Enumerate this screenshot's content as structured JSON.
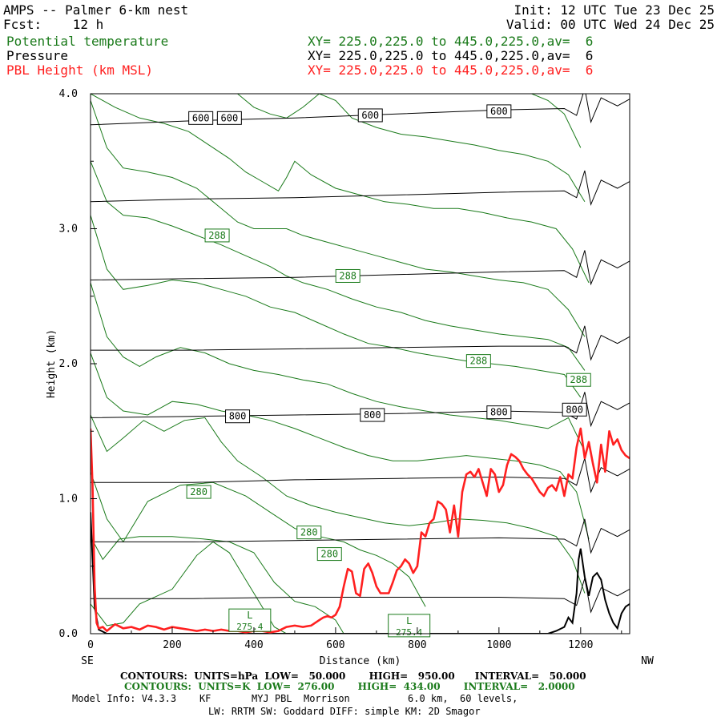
{
  "header": {
    "title": "AMPS -- Palmer 6-km nest",
    "fcst": "Fcst:    12 h",
    "init": "Init: 12 UTC Tue 23 Dec 25",
    "valid": "Valid: 00 UTC Wed 24 Dec 25",
    "fields": [
      {
        "name": "Potential temperature",
        "xy": "XY= 225.0,225.0 to 445.0,225.0,av=  6",
        "color": "#1a7a1a"
      },
      {
        "name": "Pressure",
        "xy": "XY= 225.0,225.0 to 445.0,225.0,av=  6",
        "color": "#000000"
      },
      {
        "name": "PBL Height (km MSL)",
        "xy": "XY= 225.0,225.0 to 445.0,225.0,av=  6",
        "color": "#ff2020"
      }
    ]
  },
  "footer": {
    "contours_p": "CONTOURS:  UNITS=hPa  LOW=   50.000       HIGH=   950.00      INTERVAL=   50.000",
    "contours_t": "CONTOURS:  UNITS=K  LOW=  276.00       HIGH=  434.00       INTERVAL=   2.0000",
    "model_info": "Model Info: V4.3.3    KF       MYJ PBL  Morrison          6.0 km,  60 levels,",
    "model_info2": "LW: RRTM SW: Goddard DIFF: simple KM: 2D Smagor"
  },
  "chart_data": {
    "type": "line",
    "xlabel": "Distance (km)",
    "ylabel": "Height (km)",
    "xlim": [
      0,
      1320
    ],
    "ylim": [
      0,
      4.0
    ],
    "x_ticks": [
      0,
      200,
      400,
      600,
      800,
      1000,
      1200
    ],
    "y_ticks": [
      "0.0",
      "1.0",
      "2.0",
      "3.0",
      "4.0"
    ],
    "x_end_labels": {
      "left": "SE",
      "right": "NW"
    },
    "colors": {
      "theta": "#1a7a1a",
      "pressure": "#000000",
      "pbl": "#ff2020"
    },
    "pbl_height": {
      "name": "PBL Height (km MSL)",
      "x": [
        0,
        5,
        10,
        15,
        20,
        30,
        40,
        60,
        80,
        100,
        120,
        140,
        160,
        180,
        200,
        220,
        240,
        260,
        280,
        300,
        320,
        340,
        360,
        380,
        400,
        420,
        440,
        460,
        480,
        500,
        520,
        540,
        560,
        570,
        580,
        590,
        600,
        610,
        620,
        630,
        640,
        650,
        660,
        670,
        680,
        690,
        700,
        710,
        720,
        730,
        740,
        750,
        760,
        770,
        780,
        790,
        800,
        810,
        820,
        830,
        840,
        850,
        860,
        870,
        880,
        890,
        900,
        910,
        920,
        930,
        940,
        950,
        960,
        970,
        980,
        990,
        1000,
        1010,
        1020,
        1030,
        1040,
        1050,
        1060,
        1070,
        1080,
        1090,
        1100,
        1110,
        1120,
        1130,
        1140,
        1150,
        1160,
        1170,
        1180,
        1190,
        1200,
        1210,
        1220,
        1230,
        1240,
        1250,
        1260,
        1270,
        1280,
        1290,
        1300,
        1310,
        1320
      ],
      "y": [
        1.52,
        1.1,
        0.35,
        0.08,
        0.04,
        0.05,
        0.02,
        0.07,
        0.04,
        0.05,
        0.03,
        0.06,
        0.05,
        0.03,
        0.05,
        0.04,
        0.03,
        0.02,
        0.03,
        0.02,
        0.03,
        0.02,
        0.02,
        0.01,
        0.02,
        0.02,
        0.01,
        0.02,
        0.05,
        0.06,
        0.05,
        0.06,
        0.1,
        0.12,
        0.13,
        0.12,
        0.14,
        0.2,
        0.35,
        0.48,
        0.46,
        0.3,
        0.28,
        0.48,
        0.52,
        0.45,
        0.35,
        0.3,
        0.3,
        0.3,
        0.38,
        0.47,
        0.5,
        0.55,
        0.52,
        0.45,
        0.5,
        0.75,
        0.72,
        0.82,
        0.85,
        0.98,
        0.96,
        0.92,
        0.75,
        0.95,
        0.72,
        1.05,
        1.18,
        1.2,
        1.16,
        1.22,
        1.12,
        1.02,
        1.22,
        1.18,
        1.05,
        1.1,
        1.25,
        1.33,
        1.31,
        1.28,
        1.22,
        1.18,
        1.15,
        1.1,
        1.05,
        1.02,
        1.08,
        1.1,
        1.06,
        1.16,
        1.02,
        1.18,
        1.15,
        1.38,
        1.52,
        1.3,
        1.42,
        1.26,
        1.12,
        1.4,
        1.2,
        1.5,
        1.4,
        1.44,
        1.36,
        1.32,
        1.3
      ]
    },
    "pressure_contours": {
      "units": "hPa",
      "low": 50,
      "high": 950,
      "interval": 50,
      "labeled_levels": [
        "600",
        "800"
      ],
      "levels": [
        {
          "level": 950,
          "y": [
            0.26,
            0.26,
            0.27,
            0.27,
            0.27,
            0.26
          ]
        },
        {
          "level": 900,
          "y": [
            0.68,
            0.68,
            0.69,
            0.7,
            0.71,
            0.7
          ]
        },
        {
          "level": 850,
          "y": [
            1.12,
            1.12,
            1.14,
            1.15,
            1.16,
            1.15
          ]
        },
        {
          "level": 800,
          "y": [
            1.6,
            1.61,
            1.62,
            1.63,
            1.65,
            1.64
          ]
        },
        {
          "level": 750,
          "y": [
            2.1,
            2.1,
            2.11,
            2.12,
            2.13,
            2.13
          ]
        },
        {
          "level": 700,
          "y": [
            2.62,
            2.63,
            2.64,
            2.66,
            2.68,
            2.69
          ]
        },
        {
          "level": 650,
          "y": [
            3.2,
            3.22,
            3.23,
            3.25,
            3.27,
            3.28
          ]
        },
        {
          "level": 600,
          "y": [
            3.77,
            3.8,
            3.82,
            3.85,
            3.88,
            3.89
          ]
        }
      ],
      "x": [
        0,
        250,
        500,
        750,
        1000,
        1160
      ]
    },
    "theta_contours": {
      "units": "K",
      "low": 276,
      "high": 434,
      "interval": 2,
      "labeled_levels": [
        "280",
        "288"
      ],
      "lines": [
        {
          "x": [
            0,
            40,
            80,
            120,
            200,
            260,
            300,
            340,
            380,
            420,
            450,
            480
          ],
          "y": [
            0.22,
            0.06,
            0.08,
            0.22,
            0.33,
            0.58,
            0.68,
            0.6,
            0.4,
            0.2,
            0.05,
            0.0
          ]
        },
        {
          "x": [
            0,
            30,
            70,
            120,
            200,
            280,
            340,
            400,
            450,
            500,
            550,
            600,
            620
          ],
          "y": [
            0.72,
            0.55,
            0.7,
            0.72,
            0.72,
            0.7,
            0.68,
            0.6,
            0.38,
            0.24,
            0.2,
            0.1,
            0.0
          ]
        },
        {
          "x": [
            0,
            40,
            80,
            140,
            220,
            300,
            380,
            440,
            500,
            560,
            620,
            660,
            700,
            740,
            780,
            820
          ],
          "y": [
            1.2,
            0.85,
            0.68,
            0.98,
            1.1,
            1.12,
            1.02,
            0.9,
            0.78,
            0.72,
            0.68,
            0.62,
            0.58,
            0.52,
            0.42,
            0.2
          ]
        },
        {
          "x": [
            0,
            40,
            80,
            130,
            180,
            230,
            280,
            320,
            360,
            420,
            480,
            540,
            600,
            660,
            720,
            780,
            840,
            900,
            960,
            1020,
            1080,
            1140,
            1180,
            1210
          ],
          "y": [
            1.62,
            1.35,
            1.45,
            1.58,
            1.5,
            1.58,
            1.6,
            1.42,
            1.28,
            1.16,
            1.02,
            0.95,
            0.9,
            0.86,
            0.82,
            0.8,
            0.82,
            0.85,
            0.84,
            0.82,
            0.78,
            0.72,
            0.55,
            0.3
          ]
        },
        {
          "x": [
            0,
            40,
            80,
            140,
            200,
            260,
            320,
            380,
            440,
            500,
            560,
            620,
            680,
            740,
            800,
            860,
            920,
            980,
            1040,
            1100,
            1150,
            1190,
            1220
          ],
          "y": [
            2.08,
            1.75,
            1.65,
            1.62,
            1.72,
            1.7,
            1.65,
            1.62,
            1.58,
            1.52,
            1.45,
            1.38,
            1.32,
            1.28,
            1.28,
            1.3,
            1.32,
            1.3,
            1.28,
            1.25,
            1.2,
            1.05,
            0.7
          ]
        },
        {
          "x": [
            0,
            40,
            80,
            120,
            160,
            220,
            280,
            340,
            400,
            460,
            520,
            580,
            640,
            700,
            760,
            820,
            880,
            940,
            1000,
            1060,
            1120,
            1170,
            1210
          ],
          "y": [
            2.6,
            2.2,
            2.05,
            1.98,
            2.05,
            2.12,
            2.08,
            2.0,
            1.95,
            1.92,
            1.88,
            1.85,
            1.78,
            1.72,
            1.68,
            1.65,
            1.62,
            1.6,
            1.58,
            1.55,
            1.52,
            1.6,
            1.35
          ]
        },
        {
          "x": [
            0,
            40,
            80,
            140,
            200,
            260,
            320,
            380,
            440,
            500,
            560,
            620,
            680,
            740,
            800,
            860,
            920,
            980,
            1040,
            1100,
            1160,
            1200
          ],
          "y": [
            3.1,
            2.7,
            2.55,
            2.58,
            2.62,
            2.6,
            2.55,
            2.5,
            2.42,
            2.38,
            2.3,
            2.22,
            2.15,
            2.12,
            2.08,
            2.05,
            2.02,
            2.0,
            1.98,
            1.95,
            1.92,
            1.75
          ]
        },
        {
          "x": [
            0,
            40,
            80,
            140,
            200,
            260,
            320,
            380,
            440,
            480,
            520,
            580,
            640,
            700,
            760,
            820,
            880,
            940,
            1000,
            1060,
            1120,
            1170,
            1210
          ],
          "y": [
            3.5,
            3.2,
            3.1,
            3.08,
            3.02,
            2.95,
            2.88,
            2.8,
            2.72,
            2.65,
            2.6,
            2.55,
            2.48,
            2.42,
            2.38,
            2.32,
            2.28,
            2.25,
            2.22,
            2.2,
            2.18,
            2.12,
            1.95
          ]
        },
        {
          "x": [
            0,
            40,
            80,
            140,
            200,
            260,
            320,
            360,
            400,
            440,
            480,
            520,
            580,
            640,
            700,
            760,
            820,
            880,
            940,
            1000,
            1060,
            1120,
            1170,
            1210
          ],
          "y": [
            3.95,
            3.6,
            3.45,
            3.42,
            3.38,
            3.3,
            3.15,
            3.05,
            3.0,
            3.0,
            3.0,
            2.95,
            2.9,
            2.85,
            2.8,
            2.75,
            2.7,
            2.68,
            2.65,
            2.62,
            2.6,
            2.55,
            2.4,
            2.2
          ]
        },
        {
          "x": [
            0,
            60,
            120,
            180,
            240,
            300,
            340,
            380,
            420,
            460,
            480,
            500,
            540,
            600,
            660,
            720,
            780,
            840,
            900,
            960,
            1020,
            1080,
            1140,
            1180,
            1220
          ],
          "y": [
            4.0,
            3.9,
            3.82,
            3.78,
            3.72,
            3.6,
            3.52,
            3.42,
            3.35,
            3.28,
            3.38,
            3.5,
            3.4,
            3.3,
            3.25,
            3.2,
            3.18,
            3.15,
            3.15,
            3.12,
            3.08,
            3.05,
            3.0,
            2.85,
            2.6
          ]
        },
        {
          "x": [
            360,
            400,
            440,
            480,
            520,
            560,
            600,
            640,
            700,
            760,
            820,
            880,
            940,
            1000,
            1060,
            1120,
            1170,
            1210
          ],
          "y": [
            4.0,
            3.9,
            3.85,
            3.82,
            3.9,
            4.0,
            3.95,
            3.82,
            3.75,
            3.7,
            3.68,
            3.65,
            3.62,
            3.58,
            3.55,
            3.5,
            3.4,
            3.2
          ]
        },
        {
          "x": [
            1080,
            1120,
            1160,
            1200
          ],
          "y": [
            4.0,
            3.95,
            3.85,
            3.6
          ]
        }
      ]
    },
    "pressure_labels": [
      {
        "text": "600",
        "x": 270,
        "y": 3.82
      },
      {
        "text": "600",
        "x": 340,
        "y": 3.82
      },
      {
        "text": "600",
        "x": 685,
        "y": 3.84
      },
      {
        "text": "600",
        "x": 1000,
        "y": 3.87
      },
      {
        "text": "800",
        "x": 360,
        "y": 1.61
      },
      {
        "text": "800",
        "x": 690,
        "y": 1.62
      },
      {
        "text": "800",
        "x": 1000,
        "y": 1.64
      },
      {
        "text": "800",
        "x": 1185,
        "y": 1.66
      }
    ],
    "theta_labels": [
      {
        "text": "288",
        "x": 310,
        "y": 2.95
      },
      {
        "text": "288",
        "x": 630,
        "y": 2.65
      },
      {
        "text": "288",
        "x": 950,
        "y": 2.02
      },
      {
        "text": "288",
        "x": 1195,
        "y": 1.88
      },
      {
        "text": "280",
        "x": 265,
        "y": 1.05
      },
      {
        "text": "280",
        "x": 535,
        "y": 0.75
      },
      {
        "text": "280",
        "x": 585,
        "y": 0.59
      }
    ],
    "low_markers": [
      {
        "text": "L",
        "x": 390,
        "y": 0.1,
        "value": "275.4"
      },
      {
        "text": "L",
        "x": 780,
        "y": 0.06,
        "value": "275.4"
      }
    ],
    "terrain": {
      "x": [
        0,
        10,
        20,
        40,
        1120,
        1140,
        1160,
        1170,
        1180,
        1190,
        1195,
        1200,
        1210,
        1220,
        1230,
        1240,
        1250,
        1260,
        1270,
        1280,
        1290,
        1300,
        1310,
        1320
      ],
      "y": [
        0.9,
        0.2,
        0.03,
        0.0,
        0.0,
        0.02,
        0.05,
        0.12,
        0.08,
        0.3,
        0.55,
        0.63,
        0.42,
        0.28,
        0.42,
        0.45,
        0.4,
        0.25,
        0.15,
        0.08,
        0.04,
        0.15,
        0.2,
        0.22
      ]
    }
  }
}
